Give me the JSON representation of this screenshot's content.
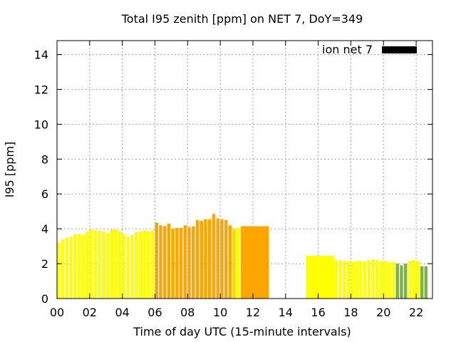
{
  "chart_data": {
    "type": "bar",
    "title": "Total I95 zenith [ppm] on NET 7, DoY=349",
    "xlabel": "Time of day UTC (15-minute intervals)",
    "ylabel": "I95 [ppm]",
    "xlim": [
      0,
      23
    ],
    "ylim": [
      0,
      14.8
    ],
    "xticks": [
      0,
      2,
      4,
      6,
      8,
      10,
      12,
      14,
      16,
      18,
      20,
      22
    ],
    "xtick_labels": [
      "00",
      "02",
      "04",
      "06",
      "08",
      "10",
      "12",
      "14",
      "16",
      "18",
      "20",
      "22"
    ],
    "yticks": [
      0,
      2,
      4,
      6,
      8,
      10,
      12,
      14
    ],
    "ytick_labels": [
      "0",
      "2",
      "4",
      "6",
      "8",
      "10",
      "12",
      "14"
    ],
    "grid": true,
    "legend": {
      "label": "ion net 7",
      "color": "#000000",
      "position": "top-right"
    },
    "colors": {
      "yellow": "#ffff00",
      "orange": "#ffa500",
      "green": "#7cb342",
      "gold": "#ffd700",
      "amber": "#f5b800"
    },
    "bars": [
      {
        "x": 0.0,
        "w": 0.25,
        "value": 3.2,
        "color": "#ffff00"
      },
      {
        "x": 0.25,
        "w": 0.25,
        "value": 3.4,
        "color": "#ffff00"
      },
      {
        "x": 0.5,
        "w": 0.25,
        "value": 3.5,
        "color": "#ffff00"
      },
      {
        "x": 0.75,
        "w": 0.25,
        "value": 3.55,
        "color": "#ffff00"
      },
      {
        "x": 1.0,
        "w": 0.25,
        "value": 3.7,
        "color": "#ffff00"
      },
      {
        "x": 1.25,
        "w": 0.25,
        "value": 3.7,
        "color": "#ffff00"
      },
      {
        "x": 1.5,
        "w": 0.25,
        "value": 3.65,
        "color": "#ffff00"
      },
      {
        "x": 1.75,
        "w": 0.25,
        "value": 3.85,
        "color": "#ffff00"
      },
      {
        "x": 2.0,
        "w": 0.25,
        "value": 3.95,
        "color": "#ffff00"
      },
      {
        "x": 2.25,
        "w": 0.25,
        "value": 3.9,
        "color": "#ffff00"
      },
      {
        "x": 2.5,
        "w": 0.25,
        "value": 3.9,
        "color": "#ffff00"
      },
      {
        "x": 2.75,
        "w": 0.25,
        "value": 3.85,
        "color": "#ffff00"
      },
      {
        "x": 3.0,
        "w": 0.25,
        "value": 3.75,
        "color": "#ffff00"
      },
      {
        "x": 3.25,
        "w": 0.25,
        "value": 3.95,
        "color": "#ffff00"
      },
      {
        "x": 3.5,
        "w": 0.25,
        "value": 3.95,
        "color": "#ffff00"
      },
      {
        "x": 3.75,
        "w": 0.25,
        "value": 3.85,
        "color": "#ffff00"
      },
      {
        "x": 4.0,
        "w": 0.25,
        "value": 3.7,
        "color": "#ffff00"
      },
      {
        "x": 4.25,
        "w": 0.25,
        "value": 3.55,
        "color": "#ffff00"
      },
      {
        "x": 4.5,
        "w": 0.25,
        "value": 3.65,
        "color": "#ffff00"
      },
      {
        "x": 4.75,
        "w": 0.25,
        "value": 3.8,
        "color": "#ffff00"
      },
      {
        "x": 5.0,
        "w": 0.25,
        "value": 3.85,
        "color": "#ffff00"
      },
      {
        "x": 5.25,
        "w": 0.25,
        "value": 3.9,
        "color": "#ffff00"
      },
      {
        "x": 5.5,
        "w": 0.25,
        "value": 3.85,
        "color": "#ffff00"
      },
      {
        "x": 5.75,
        "w": 0.25,
        "value": 3.9,
        "color": "#ffff00"
      },
      {
        "x": 6.0,
        "w": 0.25,
        "value": 4.35,
        "color": "#ffa500"
      },
      {
        "x": 6.25,
        "w": 0.25,
        "value": 4.2,
        "color": "#ffa500"
      },
      {
        "x": 6.5,
        "w": 0.25,
        "value": 4.15,
        "color": "#ffa500"
      },
      {
        "x": 6.75,
        "w": 0.25,
        "value": 4.3,
        "color": "#ffa500"
      },
      {
        "x": 7.0,
        "w": 0.25,
        "value": 4.0,
        "color": "#ffa500"
      },
      {
        "x": 7.25,
        "w": 0.25,
        "value": 4.05,
        "color": "#ffa500"
      },
      {
        "x": 7.5,
        "w": 0.25,
        "value": 4.05,
        "color": "#ffa500"
      },
      {
        "x": 7.75,
        "w": 0.25,
        "value": 4.2,
        "color": "#ffa500"
      },
      {
        "x": 8.0,
        "w": 0.25,
        "value": 4.1,
        "color": "#ffa500"
      },
      {
        "x": 8.25,
        "w": 0.25,
        "value": 4.15,
        "color": "#ffa500"
      },
      {
        "x": 8.5,
        "w": 0.25,
        "value": 4.5,
        "color": "#ffa500"
      },
      {
        "x": 8.75,
        "w": 0.25,
        "value": 4.45,
        "color": "#ffa500"
      },
      {
        "x": 9.0,
        "w": 0.25,
        "value": 4.55,
        "color": "#ffa500"
      },
      {
        "x": 9.25,
        "w": 0.25,
        "value": 4.55,
        "color": "#ffa500"
      },
      {
        "x": 9.5,
        "w": 0.25,
        "value": 4.85,
        "color": "#ffa500"
      },
      {
        "x": 9.75,
        "w": 0.25,
        "value": 4.6,
        "color": "#ffa500"
      },
      {
        "x": 10.0,
        "w": 0.25,
        "value": 4.55,
        "color": "#ffa500"
      },
      {
        "x": 10.25,
        "w": 0.25,
        "value": 4.5,
        "color": "#ffa500"
      },
      {
        "x": 10.5,
        "w": 0.25,
        "value": 4.2,
        "color": "#ffa500"
      },
      {
        "x": 10.75,
        "w": 0.25,
        "value": 4.0,
        "color": "#ffd700"
      },
      {
        "x": 11.0,
        "w": 0.25,
        "value": 4.05,
        "color": "#ffff00"
      },
      {
        "x": 11.25,
        "w": 1.75,
        "value": 4.15,
        "color": "#ffa500"
      },
      {
        "x": 15.25,
        "w": 1.75,
        "value": 2.45,
        "color": "#ffff00"
      },
      {
        "x": 17.0,
        "w": 0.25,
        "value": 2.2,
        "color": "#ffff00"
      },
      {
        "x": 17.25,
        "w": 0.25,
        "value": 2.2,
        "color": "#ffff00"
      },
      {
        "x": 17.5,
        "w": 0.25,
        "value": 2.15,
        "color": "#ffff00"
      },
      {
        "x": 17.75,
        "w": 0.25,
        "value": 2.15,
        "color": "#ffff00"
      },
      {
        "x": 18.0,
        "w": 0.25,
        "value": 2.1,
        "color": "#ffff00"
      },
      {
        "x": 18.25,
        "w": 0.25,
        "value": 2.15,
        "color": "#ffff00"
      },
      {
        "x": 18.5,
        "w": 0.25,
        "value": 2.15,
        "color": "#ffff00"
      },
      {
        "x": 18.75,
        "w": 0.25,
        "value": 2.15,
        "color": "#ffff00"
      },
      {
        "x": 19.0,
        "w": 0.25,
        "value": 2.2,
        "color": "#ffff00"
      },
      {
        "x": 19.25,
        "w": 0.25,
        "value": 2.25,
        "color": "#ffff00"
      },
      {
        "x": 19.5,
        "w": 0.25,
        "value": 2.2,
        "color": "#ffff00"
      },
      {
        "x": 19.75,
        "w": 0.25,
        "value": 2.15,
        "color": "#ffff00"
      },
      {
        "x": 20.0,
        "w": 0.25,
        "value": 2.15,
        "color": "#ffff00"
      },
      {
        "x": 20.25,
        "w": 0.25,
        "value": 2.1,
        "color": "#ffff00"
      },
      {
        "x": 20.5,
        "w": 0.25,
        "value": 2.1,
        "color": "#ffff00"
      },
      {
        "x": 20.75,
        "w": 0.25,
        "value": 2.0,
        "color": "#7cb342"
      },
      {
        "x": 21.0,
        "w": 0.25,
        "value": 1.9,
        "color": "#7cb342"
      },
      {
        "x": 21.25,
        "w": 0.25,
        "value": 2.0,
        "color": "#7cb342"
      },
      {
        "x": 21.5,
        "w": 0.25,
        "value": 2.15,
        "color": "#ffff00"
      },
      {
        "x": 21.75,
        "w": 0.25,
        "value": 2.2,
        "color": "#ffff00"
      },
      {
        "x": 22.0,
        "w": 0.25,
        "value": 2.15,
        "color": "#ffff00"
      },
      {
        "x": 22.25,
        "w": 0.25,
        "value": 1.85,
        "color": "#7cb342"
      },
      {
        "x": 22.5,
        "w": 0.25,
        "value": 1.85,
        "color": "#7cb342"
      }
    ]
  }
}
